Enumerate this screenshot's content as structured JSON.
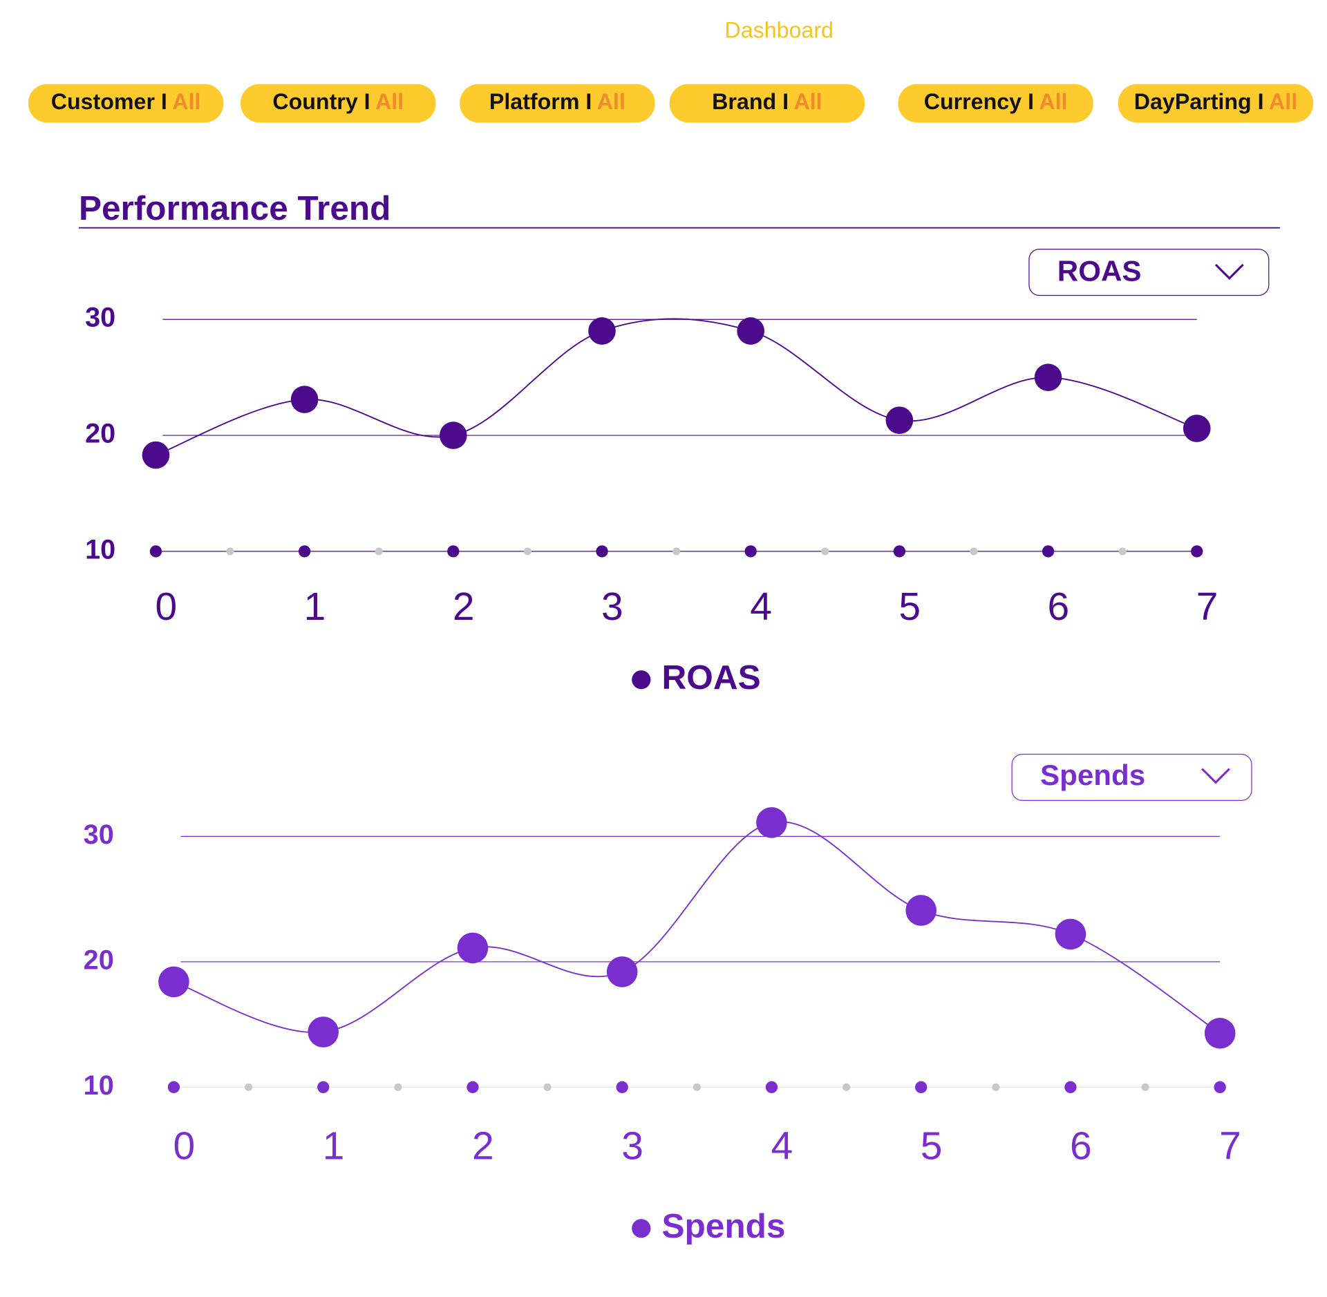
{
  "header": {
    "title": "Dashboard"
  },
  "filters": [
    {
      "label": "Customer I",
      "value": "All"
    },
    {
      "label": "Country I",
      "value": "All"
    },
    {
      "label": "Platform I",
      "value": "All"
    },
    {
      "label": "Brand I",
      "value": "All"
    },
    {
      "label": "Currency I",
      "value": "All"
    },
    {
      "label": "DayParting I",
      "value": "All"
    }
  ],
  "section": {
    "title": "Performance Trend"
  },
  "chart_data": [
    {
      "type": "line",
      "x": [
        0,
        1,
        2,
        3,
        4,
        5,
        6,
        7
      ],
      "xlim": [
        0,
        7
      ],
      "xticks": [
        0,
        1,
        2,
        3,
        4,
        5,
        6,
        7
      ],
      "ylim": [
        10,
        30
      ],
      "yticks": [
        10,
        20,
        30
      ],
      "grid": true,
      "series": [
        {
          "name": "ROAS",
          "color": "#4b0a8c",
          "values": [
            18.3,
            23.1,
            20.0,
            29.0,
            29.0,
            21.3,
            25.0,
            20.6
          ]
        }
      ]
    },
    {
      "type": "line",
      "x": [
        0,
        1,
        2,
        3,
        4,
        5,
        6,
        7
      ],
      "xlim": [
        0,
        7
      ],
      "xticks": [
        0,
        1,
        2,
        3,
        4,
        5,
        6,
        7
      ],
      "ylim": [
        10,
        30
      ],
      "yticks": [
        10,
        20,
        30
      ],
      "grid": true,
      "series": [
        {
          "name": "Spends",
          "color": "#7a2ed0",
          "values": [
            18.4,
            14.4,
            21.1,
            19.2,
            31.1,
            24.1,
            22.2,
            14.3
          ]
        }
      ]
    }
  ]
}
